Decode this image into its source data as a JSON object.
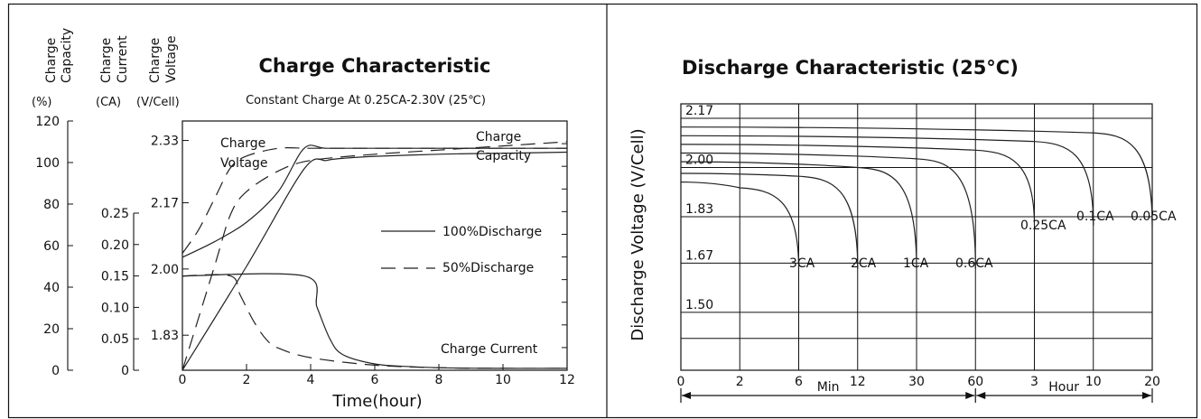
{
  "chart_data": [
    {
      "type": "line",
      "title": "Charge Characteristic",
      "subtitle": "Constant Charge At 0.25CA-2.30V  (25℃)",
      "xlabel": "Time(hour)",
      "x_ticks": [
        "0",
        "2",
        "4",
        "6",
        "8",
        "10",
        "12"
      ],
      "xlim": [
        0,
        12
      ],
      "axes": [
        {
          "heading": [
            "Charge",
            "Capacity"
          ],
          "unit": "(%)",
          "ticks": [
            "0",
            "20",
            "40",
            "60",
            "80",
            "100",
            "120"
          ],
          "range": [
            0,
            120
          ]
        },
        {
          "heading": [
            "Charge",
            "Current"
          ],
          "unit": "(CA)",
          "ticks": [
            "0",
            "0.05",
            "0.10",
            "0.15",
            "0.20",
            "0.25"
          ],
          "range": [
            0,
            0.25
          ]
        },
        {
          "heading": [
            "Charge",
            "Voltage"
          ],
          "unit": "(V/Cell)",
          "ticks": [
            "1.83",
            "2.00",
            "2.17",
            "2.33"
          ],
          "range": [
            1.74,
            2.38
          ]
        }
      ],
      "labels": {
        "charge_voltage": [
          "Charge",
          "Voltage"
        ],
        "charge_capacity": [
          "Charge",
          "Capacity"
        ],
        "charge_current": "Charge Current"
      },
      "legend": [
        {
          "name": "100%Discharge",
          "style": "solid"
        },
        {
          "name": "50%Discharge",
          "style": "dashed"
        }
      ],
      "series": [
        {
          "group": "voltage",
          "style": "solid",
          "x": [
            0,
            1,
            2,
            3,
            3.8,
            4.5,
            6,
            8,
            10,
            12
          ],
          "y": [
            2.03,
            2.07,
            2.12,
            2.2,
            2.31,
            2.31,
            2.31,
            2.31,
            2.31,
            2.31
          ]
        },
        {
          "group": "voltage",
          "style": "dashed",
          "x": [
            0,
            0.5,
            1,
            1.5,
            2,
            3,
            4,
            6,
            8,
            10,
            12
          ],
          "y": [
            2.04,
            2.1,
            2.18,
            2.26,
            2.29,
            2.31,
            2.31,
            2.31,
            2.31,
            2.31,
            2.31
          ]
        },
        {
          "group": "capacity",
          "style": "solid",
          "x": [
            0,
            2,
            3.8,
            4.5,
            5,
            6,
            8,
            10,
            12
          ],
          "y": [
            0,
            50,
            97,
            101,
            102,
            103,
            104,
            104.5,
            105
          ]
        },
        {
          "group": "capacity",
          "style": "dashed",
          "x": [
            0,
            1,
            1.5,
            2,
            3,
            4,
            6,
            8,
            10,
            12
          ],
          "y": [
            0,
            50,
            75,
            86,
            96,
            101,
            104,
            106,
            108,
            110
          ]
        },
        {
          "group": "current",
          "style": "solid",
          "x": [
            0,
            3.8,
            4.2,
            4.6,
            5,
            6,
            7,
            8,
            10,
            12
          ],
          "y": [
            0.15,
            0.15,
            0.1,
            0.05,
            0.025,
            0.01,
            0.006,
            0.004,
            0.003,
            0.003
          ]
        },
        {
          "group": "current",
          "style": "dashed",
          "x": [
            0,
            1.5,
            1.8,
            2.2,
            2.6,
            3,
            4,
            6,
            8,
            10,
            12
          ],
          "y": [
            0.15,
            0.15,
            0.12,
            0.08,
            0.05,
            0.035,
            0.02,
            0.008,
            0.004,
            0.003,
            0.003
          ]
        }
      ],
      "grid": false
    },
    {
      "type": "line",
      "title": "Discharge Characteristic  (25°C)",
      "ylabel": "Discharge Voltage (V/Cell)",
      "y_ticks": [
        "2.17",
        "2.00",
        "1.83",
        "1.67",
        "1.50"
      ],
      "ylim": [
        1.3,
        2.22
      ],
      "x_ticks": [
        "0",
        "2",
        "6",
        "12",
        "30",
        "60",
        "3",
        "10",
        "20"
      ],
      "x_groups": [
        {
          "name": "Min",
          "from": "0",
          "to": "60"
        },
        {
          "name": "Hour",
          "from": "60",
          "to": "20"
        }
      ],
      "grid": true,
      "series": [
        {
          "name": "3CA",
          "x": [
            "0",
            "2",
            "6"
          ],
          "y": [
            1.95,
            1.93,
            1.65
          ]
        },
        {
          "name": "2CA",
          "x": [
            "0",
            "6",
            "12"
          ],
          "y": [
            1.98,
            1.97,
            1.65
          ]
        },
        {
          "name": "1CA",
          "x": [
            "0",
            "12",
            "30"
          ],
          "y": [
            2.02,
            2.0,
            1.65
          ]
        },
        {
          "name": "0.6CA",
          "x": [
            "0",
            "30",
            "60"
          ],
          "y": [
            2.05,
            2.03,
            1.65
          ]
        },
        {
          "name": "0.25CA",
          "x": [
            "0",
            "60",
            "3"
          ],
          "y": [
            2.08,
            2.06,
            1.8
          ]
        },
        {
          "name": "0.1CA",
          "x": [
            "0",
            "3",
            "10"
          ],
          "y": [
            2.11,
            2.09,
            1.8
          ]
        },
        {
          "name": "0.05CA",
          "x": [
            "0",
            "10",
            "20"
          ],
          "y": [
            2.14,
            2.12,
            1.8
          ]
        }
      ]
    }
  ]
}
